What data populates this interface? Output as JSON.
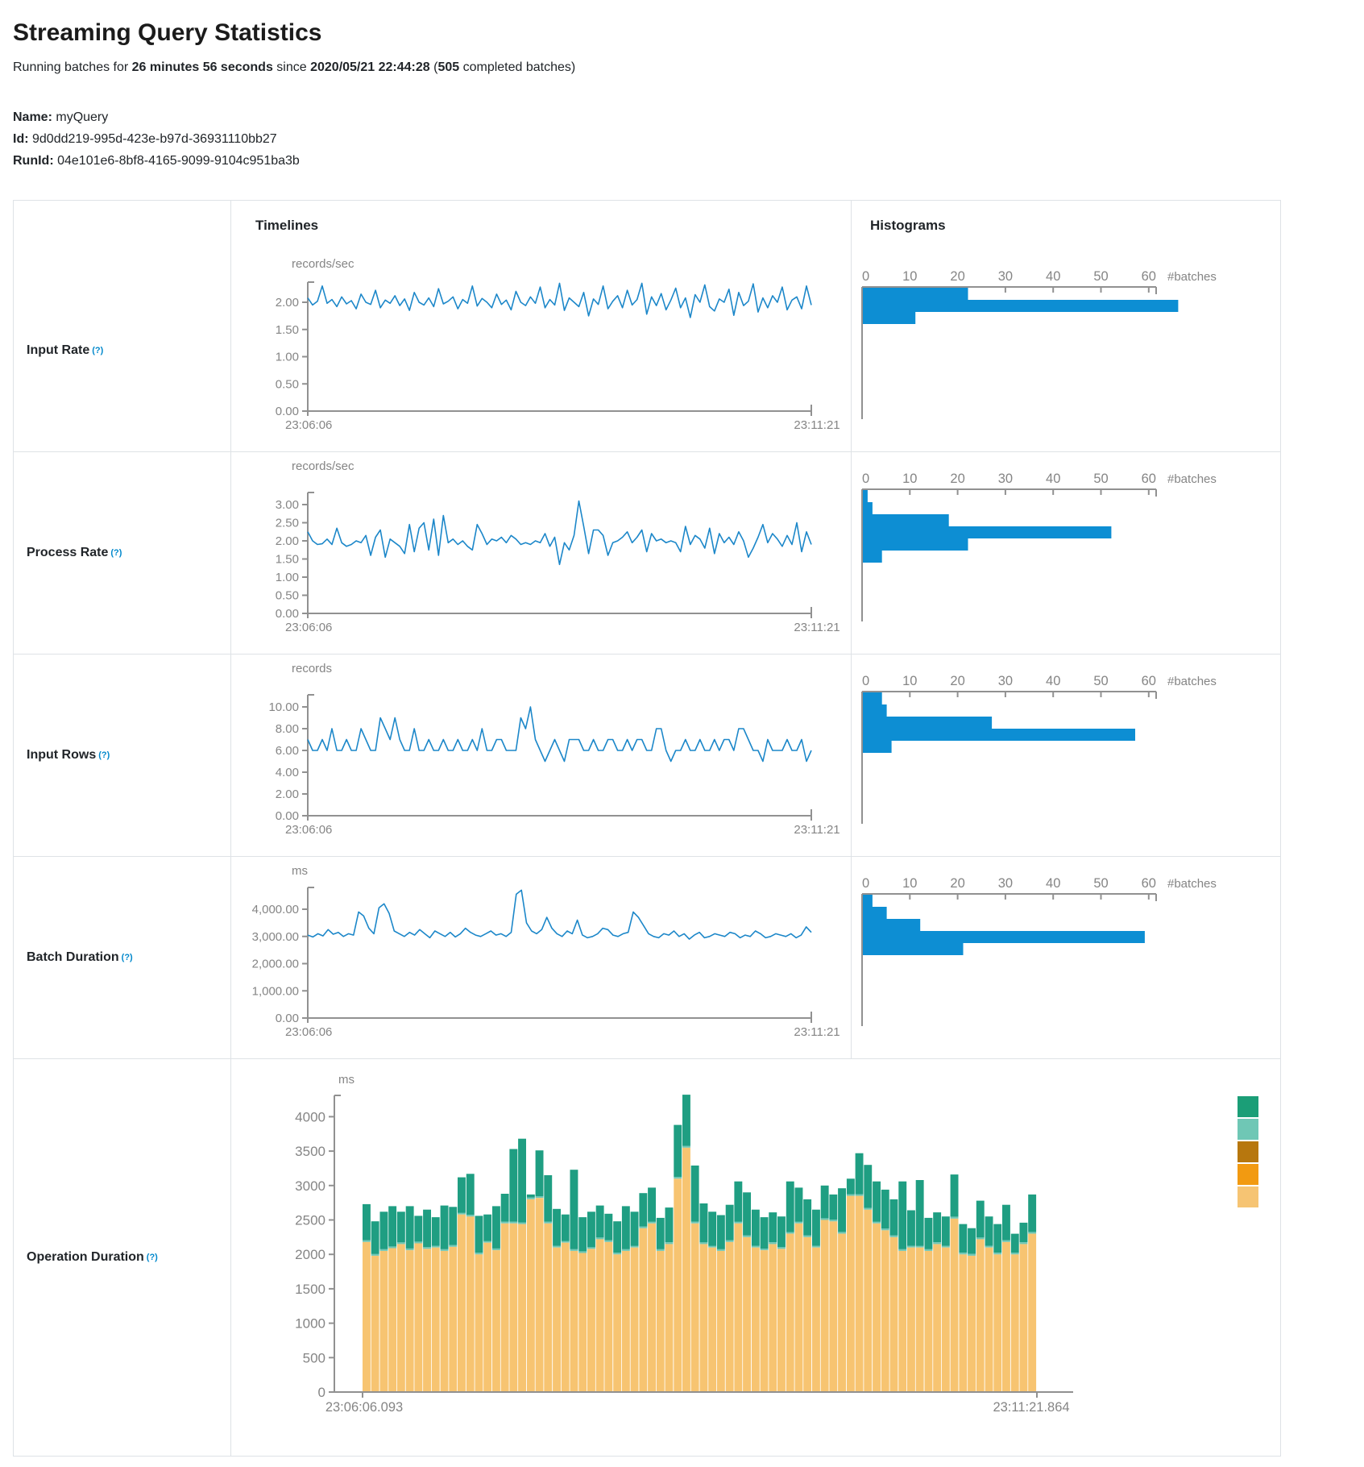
{
  "page": {
    "title": "Streaming Query Statistics",
    "subtitle": {
      "prefix": "Running batches for ",
      "duration": "26 minutes 56 seconds",
      "mid": " since ",
      "start_time": "2020/05/21 22:44:28",
      "paren_open": " (",
      "batches": "505",
      "suffix": " completed batches)"
    },
    "query": {
      "name_label": "Name:",
      "name": "myQuery",
      "id_label": "Id:",
      "id": "9d0dd219-995d-423e-b97d-36931110bb27",
      "runid_label": "RunId:",
      "runid": "04e101e6-8bf8-4165-9099-9104c951ba3b"
    }
  },
  "table": {
    "header": {
      "timelines": "Timelines",
      "histograms": "Histograms"
    }
  },
  "colors": {
    "line_blue": "#1c87c9",
    "hist_blue": "#0d8ed3",
    "axis_gray": "#919191",
    "text_gray": "#858585",
    "border": "#dee2e6",
    "help_blue": "#0088cc",
    "op_tan": "#f7c471",
    "op_teal_sliver": "#6fc7b5",
    "op_green": "#1f9e82",
    "legend": [
      "#1b9e77",
      "#6fc7b5",
      "#b7770e",
      "#f29a11",
      "#f6c473"
    ]
  },
  "chart_data": [
    {
      "type": "line",
      "label": "Input Rate",
      "help": "(?)",
      "unit": "records/sec",
      "x_start": "23:06:06",
      "x_end": "23:11:21",
      "ytick_labels": [
        "2.00",
        "1.50",
        "1.00",
        "0.50",
        "0.00"
      ],
      "ytick_values": [
        2,
        1.5,
        1,
        0.5,
        0
      ],
      "values": [
        2.08,
        1.95,
        2.02,
        2.3,
        1.98,
        2.05,
        1.92,
        2.1,
        1.97,
        2.03,
        1.88,
        2.15,
        2.0,
        1.96,
        2.22,
        1.9,
        2.04,
        1.98,
        2.12,
        1.94,
        2.06,
        1.85,
        2.18,
        2.0,
        1.95,
        2.08,
        1.92,
        2.25,
        1.97,
        2.02,
        2.1,
        1.88,
        2.05,
        1.98,
        2.3,
        1.93,
        2.07,
        2.0,
        1.9,
        2.15,
        1.96,
        2.04,
        1.86,
        2.2,
        2.0,
        1.94,
        2.1,
        1.98,
        2.28,
        1.9,
        2.05,
        1.95,
        2.35,
        1.85,
        2.08,
        2.0,
        1.92,
        2.18,
        1.75,
        2.06,
        1.96,
        2.3,
        1.88,
        2.02,
        2.12,
        1.9,
        2.22,
        1.95,
        2.05,
        2.35,
        1.78,
        2.1,
        1.94,
        2.16,
        1.86,
        2.04,
        2.26,
        1.9,
        2.08,
        1.72,
        2.14,
        2.0,
        2.32,
        1.92,
        1.84,
        2.06,
        2.0,
        2.24,
        1.76,
        2.18,
        1.94,
        2.02,
        2.34,
        1.82,
        2.08,
        1.9,
        2.12,
        2.0,
        2.28,
        1.86,
        2.04,
        2.1,
        1.88,
        2.3,
        1.95
      ],
      "histogram": {
        "tick_labels": [
          "0",
          "10",
          "20",
          "30",
          "40",
          "50",
          "60"
        ],
        "axis_label": "#batches",
        "bins": [
          22,
          66,
          11
        ]
      }
    },
    {
      "type": "line",
      "label": "Process Rate",
      "help": "(?)",
      "unit": "records/sec",
      "x_start": "23:06:06",
      "x_end": "23:11:21",
      "ytick_labels": [
        "3.00",
        "2.50",
        "2.00",
        "1.50",
        "1.00",
        "0.50",
        "0.00"
      ],
      "ytick_values": [
        3,
        2.5,
        2,
        1.5,
        1,
        0.5,
        0
      ],
      "values": [
        2.25,
        2.0,
        1.9,
        1.92,
        2.05,
        1.9,
        2.35,
        1.95,
        1.85,
        1.9,
        2.0,
        1.95,
        2.15,
        1.6,
        2.1,
        2.3,
        1.55,
        2.05,
        1.95,
        1.85,
        1.65,
        2.45,
        1.7,
        2.35,
        2.5,
        1.75,
        2.6,
        1.6,
        2.7,
        1.95,
        2.05,
        1.9,
        2.0,
        1.85,
        1.75,
        2.45,
        2.2,
        1.9,
        2.05,
        2.0,
        2.1,
        1.95,
        2.15,
        2.05,
        1.9,
        1.95,
        1.9,
        2.0,
        1.95,
        2.2,
        1.85,
        2.1,
        1.35,
        1.95,
        1.75,
        2.15,
        3.1,
        2.4,
        1.65,
        2.3,
        2.3,
        2.15,
        1.6,
        1.95,
        2.0,
        2.1,
        2.25,
        1.95,
        2.1,
        2.3,
        1.7,
        2.2,
        2.0,
        2.05,
        1.95,
        2.0,
        1.95,
        1.7,
        2.4,
        1.9,
        2.15,
        2.05,
        1.8,
        2.35,
        1.65,
        2.2,
        1.95,
        2.1,
        1.9,
        2.25,
        2.0,
        1.55,
        1.8,
        2.1,
        2.45,
        1.95,
        2.2,
        2.05,
        1.85,
        2.15,
        1.9,
        2.5,
        1.7,
        2.25,
        1.9
      ],
      "histogram": {
        "tick_labels": [
          "0",
          "10",
          "20",
          "30",
          "40",
          "50",
          "60"
        ],
        "axis_label": "#batches",
        "bins": [
          1,
          2,
          18,
          52,
          22,
          4
        ]
      }
    },
    {
      "type": "line",
      "label": "Input Rows",
      "help": "(?)",
      "unit": "records",
      "x_start": "23:06:06",
      "x_end": "23:11:21",
      "ytick_labels": [
        "10.00",
        "8.00",
        "6.00",
        "4.00",
        "2.00",
        "0.00"
      ],
      "ytick_values": [
        10,
        8,
        6,
        4,
        2,
        0
      ],
      "values": [
        7,
        6,
        6,
        7,
        6,
        8,
        6,
        6,
        7,
        6,
        6,
        8,
        7,
        6,
        6,
        9,
        8,
        7,
        9,
        7,
        6,
        6,
        8,
        6,
        6,
        7,
        6,
        6,
        7,
        6,
        6,
        7,
        6,
        6,
        7,
        6,
        8,
        6,
        6,
        7,
        7,
        6,
        6,
        6,
        9,
        8,
        10,
        7,
        6,
        5,
        6,
        7,
        6,
        5,
        7,
        7,
        7,
        6,
        6,
        7,
        6,
        6,
        7,
        7,
        6,
        6,
        7,
        6,
        7,
        7,
        6,
        6,
        8,
        8,
        6,
        5,
        6,
        6,
        7,
        6,
        6,
        7,
        6,
        6,
        7,
        6,
        7,
        7,
        6,
        8,
        8,
        7,
        6,
        6,
        5,
        7,
        6,
        6,
        6,
        7,
        6,
        6,
        7,
        5,
        6
      ],
      "histogram": {
        "tick_labels": [
          "0",
          "10",
          "20",
          "30",
          "40",
          "50",
          "60"
        ],
        "axis_label": "#batches",
        "bins": [
          4,
          5,
          27,
          57,
          6
        ]
      }
    },
    {
      "type": "line",
      "label": "Batch Duration",
      "help": "(?)",
      "unit": "ms",
      "x_start": "23:06:06",
      "x_end": "23:11:21",
      "ytick_labels": [
        "4,000.00",
        "3,000.00",
        "2,000.00",
        "1,000.00",
        "0.00"
      ],
      "ytick_values": [
        4000,
        3000,
        2000,
        1000,
        0
      ],
      "values": [
        3050,
        2980,
        3100,
        3020,
        3250,
        3080,
        3150,
        3000,
        3100,
        3050,
        3900,
        3750,
        3300,
        3100,
        4050,
        4200,
        3850,
        3200,
        3100,
        3000,
        3150,
        3050,
        3250,
        3100,
        2950,
        3200,
        3100,
        3000,
        3150,
        2980,
        3100,
        3300,
        3150,
        3050,
        3000,
        3100,
        3200,
        3050,
        3100,
        3000,
        3150,
        4550,
        4700,
        3500,
        3200,
        3100,
        3250,
        3700,
        3300,
        3100,
        3000,
        3200,
        3100,
        3600,
        3050,
        2950,
        3000,
        3100,
        3300,
        3250,
        3050,
        3000,
        3100,
        3150,
        3900,
        3700,
        3400,
        3100,
        3000,
        2950,
        3100,
        3050,
        3200,
        3000,
        3100,
        2900,
        3050,
        3150,
        2950,
        3000,
        3100,
        3050,
        3000,
        3150,
        3100,
        2950,
        3050,
        3000,
        3200,
        3100,
        2950,
        3000,
        3100,
        3050,
        3000,
        3100,
        2950,
        3050,
        3350,
        3150
      ],
      "histogram": {
        "tick_labels": [
          "0",
          "10",
          "20",
          "30",
          "40",
          "50",
          "60"
        ],
        "axis_label": "#batches",
        "bins": [
          2,
          5,
          12,
          59,
          21
        ]
      }
    },
    {
      "type": "stacked-bar",
      "label": "Operation Duration",
      "help": "(?)",
      "unit": "ms",
      "x_start": "23:06:06.093",
      "x_end": "23:11:21.864",
      "ytick_labels": [
        "4000",
        "3500",
        "3000",
        "2500",
        "2000",
        "1500",
        "1000",
        "500",
        "0"
      ],
      "ytick_values": [
        4000,
        3500,
        3000,
        2500,
        2000,
        1500,
        1000,
        500,
        0
      ],
      "sliver": 25,
      "bars": [
        [
          2180,
          525
        ],
        [
          1980,
          475
        ],
        [
          2050,
          545
        ],
        [
          2090,
          585
        ],
        [
          2150,
          445
        ],
        [
          2060,
          615
        ],
        [
          2160,
          375
        ],
        [
          2080,
          545
        ],
        [
          2100,
          415
        ],
        [
          2050,
          635
        ],
        [
          2110,
          555
        ],
        [
          2580,
          515
        ],
        [
          2550,
          595
        ],
        [
          2000,
          535
        ],
        [
          2170,
          385
        ],
        [
          2060,
          615
        ],
        [
          2450,
          405
        ],
        [
          2450,
          1055
        ],
        [
          2440,
          1215
        ],
        [
          2800,
          45
        ],
        [
          2820,
          665
        ],
        [
          2450,
          675
        ],
        [
          2100,
          535
        ],
        [
          2170,
          385
        ],
        [
          2050,
          1155
        ],
        [
          2020,
          495
        ],
        [
          2080,
          515
        ],
        [
          2220,
          465
        ],
        [
          2180,
          385
        ],
        [
          2000,
          455
        ],
        [
          2050,
          625
        ],
        [
          2100,
          495
        ],
        [
          2380,
          485
        ],
        [
          2450,
          495
        ],
        [
          2050,
          455
        ],
        [
          2150,
          505
        ],
        [
          3100,
          755
        ],
        [
          3550,
          745
        ],
        [
          2450,
          815
        ],
        [
          2150,
          565
        ],
        [
          2100,
          495
        ],
        [
          2050,
          495
        ],
        [
          2180,
          515
        ],
        [
          2450,
          585
        ],
        [
          2250,
          625
        ],
        [
          2100,
          525
        ],
        [
          2060,
          455
        ],
        [
          2150,
          435
        ],
        [
          2080,
          445
        ],
        [
          2300,
          735
        ],
        [
          2450,
          495
        ],
        [
          2250,
          525
        ],
        [
          2100,
          525
        ],
        [
          2500,
          475
        ],
        [
          2480,
          365
        ],
        [
          2300,
          635
        ],
        [
          2850,
          225
        ],
        [
          2850,
          595
        ],
        [
          2650,
          625
        ],
        [
          2450,
          585
        ],
        [
          2350,
          565
        ],
        [
          2250,
          525
        ],
        [
          2050,
          985
        ],
        [
          2100,
          515
        ],
        [
          2100,
          955
        ],
        [
          2050,
          455
        ],
        [
          2150,
          435
        ],
        [
          2100,
          425
        ],
        [
          2520,
          615
        ],
        [
          2000,
          415
        ],
        [
          1980,
          375
        ],
        [
          2220,
          535
        ],
        [
          2100,
          425
        ],
        [
          2000,
          415
        ],
        [
          2180,
          515
        ],
        [
          2000,
          275
        ],
        [
          2150,
          285
        ],
        [
          2300,
          545
        ]
      ],
      "legend_swatches": [
        "#1b9e77",
        "#6fc7b5",
        "#b7770e",
        "#f29a11",
        "#f6c473"
      ]
    }
  ]
}
